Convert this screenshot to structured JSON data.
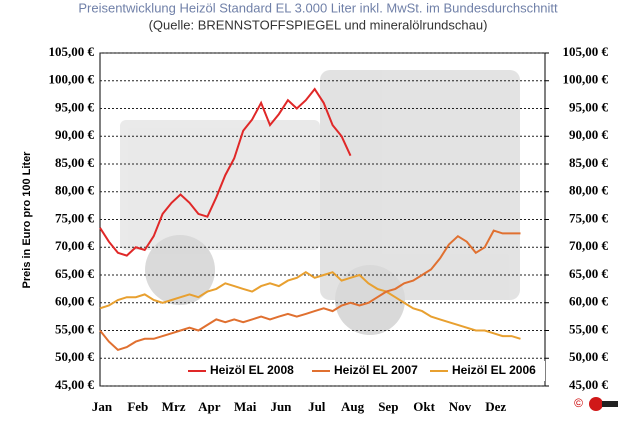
{
  "chart_data": {
    "type": "line",
    "title": "Preisentwicklung Heizöl Standard EL 3.000 Liter inkl. MwSt. im Bundesdurchschnitt",
    "subtitle": "(Quelle: BRENNSTOFFSPIEGEL und mineralölrundschau)",
    "y_label": "Preis in Euro pro 100 Liter",
    "copyright": "©",
    "categories": [
      "Jan",
      null,
      null,
      null,
      "Feb",
      null,
      null,
      null,
      "Mrz",
      null,
      null,
      null,
      "Apr",
      null,
      null,
      null,
      "Mai",
      null,
      null,
      null,
      "Jun",
      null,
      null,
      null,
      "Jul",
      null,
      null,
      null,
      "Aug",
      null,
      null,
      null,
      "Sep",
      null,
      null,
      null,
      "Okt",
      null,
      null,
      null,
      "Nov",
      null,
      null,
      null,
      "Dez",
      null,
      null,
      null
    ],
    "series": [
      {
        "name": "Heizöl EL 2008",
        "color": "#e02828",
        "values": [
          73.5,
          71,
          69,
          68.5,
          70,
          69.5,
          72,
          76,
          78,
          79.5,
          78,
          76,
          75.5,
          79,
          83,
          86,
          91,
          93,
          96,
          92,
          94,
          96.5,
          95,
          96.5,
          98.5,
          96,
          92,
          90,
          86.5,
          null,
          null,
          null,
          null,
          null,
          null,
          null,
          null,
          null,
          null,
          null,
          null,
          null,
          null,
          null,
          null,
          null,
          null,
          null
        ]
      },
      {
        "name": "Heizöl EL 2007",
        "color": "#e07030",
        "values": [
          55,
          53,
          51.5,
          52,
          53,
          53.5,
          53.5,
          54,
          54.5,
          55,
          55.5,
          55,
          56,
          57,
          56.5,
          57,
          56.5,
          57,
          57.5,
          57,
          57.5,
          58,
          57.5,
          58,
          58.5,
          59,
          58.5,
          59.5,
          60,
          59.5,
          60,
          61,
          62,
          62.5,
          63.5,
          64,
          65,
          66,
          68,
          70.5,
          72,
          71,
          69,
          70,
          73,
          72.5,
          72.5,
          72.5
        ]
      },
      {
        "name": "Heizöl EL 2006",
        "color": "#e8a030",
        "values": [
          59,
          59.5,
          60.5,
          61,
          61,
          61.5,
          60.5,
          60,
          60.5,
          61,
          61.5,
          61,
          62,
          62.5,
          63.5,
          63,
          62.5,
          62,
          63,
          63.5,
          63,
          64,
          64.5,
          65.5,
          64.5,
          65,
          65.5,
          64,
          64.5,
          65,
          63.5,
          62.5,
          62,
          61,
          60,
          59,
          58.5,
          57.5,
          57,
          56.5,
          56,
          55.5,
          55,
          55,
          54.5,
          54,
          54,
          53.5
        ]
      }
    ],
    "ylim": [
      45,
      105
    ],
    "yticks": [
      {
        "value": 45,
        "label": "45,00 €"
      },
      {
        "value": 50,
        "label": "50,00 €"
      },
      {
        "value": 55,
        "label": "55,00 €"
      },
      {
        "value": 60,
        "label": "60,00 €"
      },
      {
        "value": 65,
        "label": "65,00 €"
      },
      {
        "value": 70,
        "label": "70,00 €"
      },
      {
        "value": 75,
        "label": "75,00 €"
      },
      {
        "value": 80,
        "label": "80,00 €"
      },
      {
        "value": 85,
        "label": "85,00 €"
      },
      {
        "value": 90,
        "label": "90,00 €"
      },
      {
        "value": 95,
        "label": "95,00 €"
      },
      {
        "value": 100,
        "label": "100,00 €"
      },
      {
        "value": 105,
        "label": "105,00 €"
      }
    ],
    "y2lim": [
      45,
      105
    ],
    "y2ticks": [
      {
        "value": 45,
        "label": "45,00 €"
      },
      {
        "value": 50,
        "label": "50,00 €"
      },
      {
        "value": 55,
        "label": "55,00 €"
      },
      {
        "value": 60,
        "label": "60,00 €"
      },
      {
        "value": 65,
        "label": "65,00 €"
      },
      {
        "value": 70,
        "label": "70,00 €"
      },
      {
        "value": 75,
        "label": "75,00 €"
      },
      {
        "value": 80,
        "label": "80,00 €"
      },
      {
        "value": 85,
        "label": "85,00 €"
      },
      {
        "value": 90,
        "label": "90,00 €"
      },
      {
        "value": 95,
        "label": "95,00 €"
      },
      {
        "value": 100,
        "label": "100,00 €"
      },
      {
        "value": 105,
        "label": "105,00 €"
      }
    ],
    "grid": true,
    "legend": "bottom"
  }
}
